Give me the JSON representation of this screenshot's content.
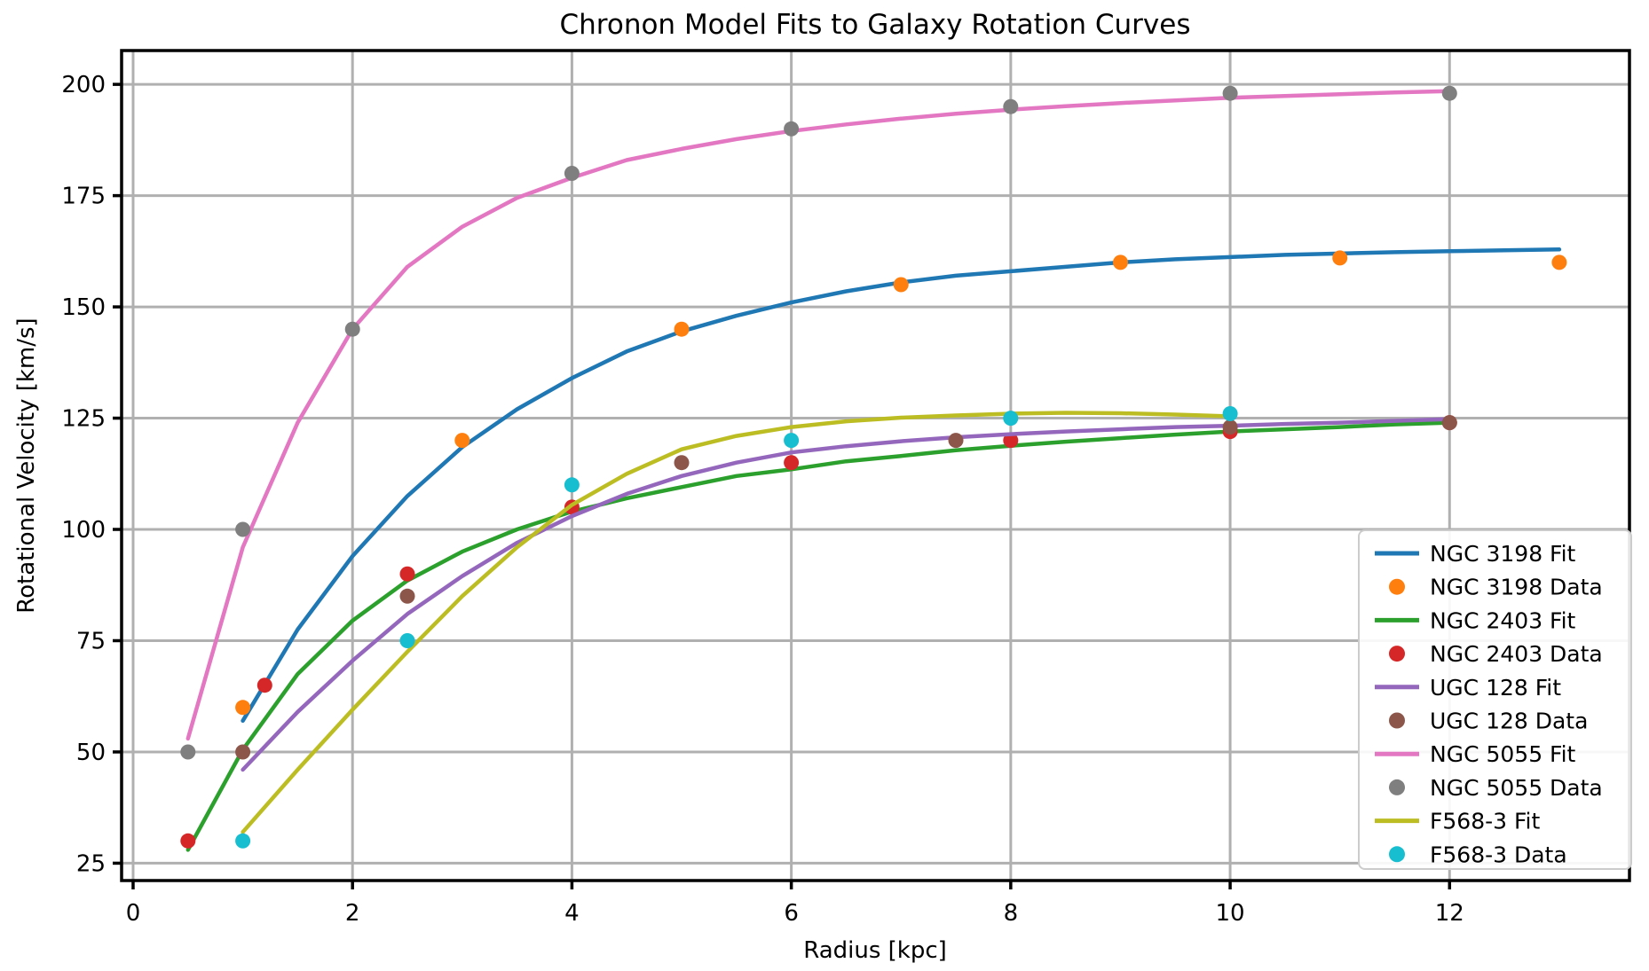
{
  "chart_data": {
    "type": "line",
    "title": "Chronon Model Fits to Galaxy Rotation Curves",
    "xlabel": "Radius [kpc]",
    "ylabel": "Rotational Velocity [km/s]",
    "xlim": [
      -0.105,
      13.64
    ],
    "ylim": [
      21.1,
      207.6
    ],
    "xticks": [
      0,
      2,
      4,
      6,
      8,
      10,
      12
    ],
    "yticks": [
      25,
      50,
      75,
      100,
      125,
      150,
      175,
      200
    ],
    "grid": true,
    "grid_color": "#b0b0b0",
    "background_color": "#ffffff",
    "legend_position": "lower right",
    "series": [
      {
        "name": "NGC 3198 Fit",
        "type": "line",
        "color": "#1f77b4",
        "points": [
          [
            1,
            57
          ],
          [
            1.5,
            77.5
          ],
          [
            2,
            94
          ],
          [
            2.5,
            107.5
          ],
          [
            3,
            118.5
          ],
          [
            3.5,
            127
          ],
          [
            4,
            134
          ],
          [
            4.5,
            140
          ],
          [
            5,
            144.5
          ],
          [
            5.5,
            148
          ],
          [
            6,
            151
          ],
          [
            6.5,
            153.5
          ],
          [
            7,
            155.5
          ],
          [
            7.5,
            157
          ],
          [
            8,
            158
          ],
          [
            8.5,
            159
          ],
          [
            9,
            160
          ],
          [
            9.5,
            160.7
          ],
          [
            10,
            161.2
          ],
          [
            10.5,
            161.7
          ],
          [
            11,
            162
          ],
          [
            11.5,
            162.3
          ],
          [
            12,
            162.5
          ],
          [
            12.5,
            162.7
          ],
          [
            13,
            162.9
          ]
        ]
      },
      {
        "name": "NGC 3198 Data",
        "type": "scatter",
        "color": "#ff7f0e",
        "points": [
          [
            1,
            60
          ],
          [
            3,
            120
          ],
          [
            5,
            145
          ],
          [
            7,
            155
          ],
          [
            9,
            160
          ],
          [
            11,
            161
          ],
          [
            13,
            160
          ]
        ]
      },
      {
        "name": "NGC 2403 Fit",
        "type": "line",
        "color": "#2ca02c",
        "points": [
          [
            0.5,
            28
          ],
          [
            1,
            50.5
          ],
          [
            1.5,
            67.5
          ],
          [
            2,
            79.5
          ],
          [
            2.5,
            88.5
          ],
          [
            3,
            95
          ],
          [
            3.5,
            100
          ],
          [
            4,
            104
          ],
          [
            4.5,
            107
          ],
          [
            5,
            109.5
          ],
          [
            5.5,
            112
          ],
          [
            6,
            113.5
          ],
          [
            6.5,
            115.3
          ],
          [
            7,
            116.5
          ],
          [
            7.5,
            117.8
          ],
          [
            8,
            118.8
          ],
          [
            8.5,
            119.7
          ],
          [
            9,
            120.5
          ],
          [
            9.5,
            121.3
          ],
          [
            10,
            122
          ],
          [
            10.5,
            122.5
          ],
          [
            11,
            123
          ],
          [
            11.5,
            123.6
          ],
          [
            12,
            124
          ]
        ]
      },
      {
        "name": "NGC 2403 Data",
        "type": "scatter",
        "color": "#d62728",
        "points": [
          [
            0.5,
            30
          ],
          [
            1.2,
            65
          ],
          [
            2.5,
            90
          ],
          [
            4,
            105
          ],
          [
            6,
            115
          ],
          [
            8,
            120
          ],
          [
            10,
            122
          ],
          [
            12,
            124
          ]
        ]
      },
      {
        "name": "UGC 128 Fit",
        "type": "line",
        "color": "#9467bd",
        "points": [
          [
            1,
            46
          ],
          [
            1.5,
            59
          ],
          [
            2,
            70.5
          ],
          [
            2.5,
            81
          ],
          [
            3,
            89.5
          ],
          [
            3.5,
            97
          ],
          [
            4,
            103
          ],
          [
            4.5,
            108
          ],
          [
            5,
            112
          ],
          [
            5.5,
            115
          ],
          [
            6,
            117.3
          ],
          [
            6.5,
            118.7
          ],
          [
            7,
            119.8
          ],
          [
            7.5,
            120.7
          ],
          [
            8,
            121.4
          ],
          [
            8.5,
            122
          ],
          [
            9,
            122.5
          ],
          [
            9.5,
            123
          ],
          [
            10,
            123.3
          ],
          [
            10.5,
            123.7
          ],
          [
            11,
            124
          ],
          [
            11.5,
            124.4
          ],
          [
            12,
            124.8
          ]
        ]
      },
      {
        "name": "UGC 128 Data",
        "type": "scatter",
        "color": "#8c564b",
        "points": [
          [
            1,
            50
          ],
          [
            2.5,
            85
          ],
          [
            5,
            115
          ],
          [
            7.5,
            120
          ],
          [
            10,
            123
          ],
          [
            12,
            124
          ]
        ]
      },
      {
        "name": "NGC 5055 Fit",
        "type": "line",
        "color": "#e377c2",
        "points": [
          [
            0.5,
            53
          ],
          [
            1,
            96
          ],
          [
            1.5,
            124
          ],
          [
            2,
            145
          ],
          [
            2.5,
            159
          ],
          [
            3,
            168
          ],
          [
            3.5,
            174.5
          ],
          [
            4,
            179
          ],
          [
            4.5,
            183
          ],
          [
            5,
            185.5
          ],
          [
            5.5,
            187.7
          ],
          [
            6,
            189.5
          ],
          [
            6.5,
            191
          ],
          [
            7,
            192.3
          ],
          [
            7.5,
            193.4
          ],
          [
            8,
            194.3
          ],
          [
            8.5,
            195.1
          ],
          [
            9,
            195.8
          ],
          [
            9.5,
            196.4
          ],
          [
            10,
            197
          ],
          [
            10.5,
            197.4
          ],
          [
            11,
            197.8
          ],
          [
            11.5,
            198.2
          ],
          [
            12,
            198.5
          ]
        ]
      },
      {
        "name": "NGC 5055 Data",
        "type": "scatter",
        "color": "#7f7f7f",
        "points": [
          [
            0.5,
            50
          ],
          [
            1,
            100
          ],
          [
            2,
            145
          ],
          [
            4,
            180
          ],
          [
            6,
            190
          ],
          [
            8,
            195
          ],
          [
            10,
            198
          ],
          [
            12,
            198
          ]
        ]
      },
      {
        "name": "F568-3 Fit",
        "type": "line",
        "color": "#bcbd22",
        "points": [
          [
            1,
            32
          ],
          [
            1.5,
            46
          ],
          [
            2,
            59.5
          ],
          [
            2.5,
            72.5
          ],
          [
            3,
            85
          ],
          [
            3.5,
            96
          ],
          [
            4,
            105.5
          ],
          [
            4.5,
            112.5
          ],
          [
            5,
            118
          ],
          [
            5.5,
            121
          ],
          [
            6,
            123
          ],
          [
            6.5,
            124.3
          ],
          [
            7,
            125.1
          ],
          [
            7.5,
            125.6
          ],
          [
            8,
            126
          ],
          [
            8.5,
            126.2
          ],
          [
            9,
            126.1
          ],
          [
            9.5,
            125.8
          ],
          [
            10,
            125.4
          ]
        ]
      },
      {
        "name": "F568-3 Data",
        "type": "scatter",
        "color": "#17becf",
        "points": [
          [
            1,
            30
          ],
          [
            2.5,
            75
          ],
          [
            4,
            110
          ],
          [
            6,
            120
          ],
          [
            8,
            125
          ],
          [
            10,
            126
          ]
        ]
      }
    ]
  }
}
